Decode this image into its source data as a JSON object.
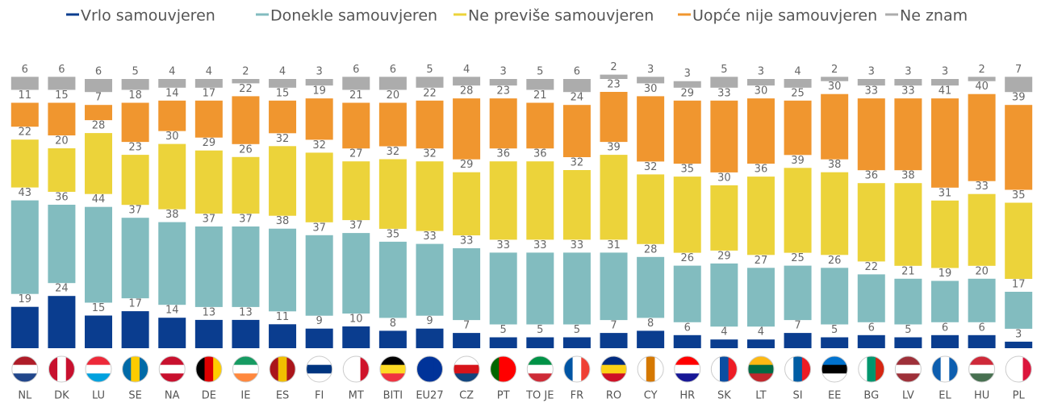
{
  "chart_data": {
    "type": "stacked_bar",
    "categories": [
      "NL",
      "DK",
      "LU",
      "SE",
      "NA",
      "DE",
      "IE",
      "ES",
      "FI",
      "MT",
      "BITI",
      "EU27",
      "CZ",
      "PT",
      "TO JE",
      "FR",
      "RO",
      "CY",
      "HR",
      "SK",
      "LT",
      "SI",
      "EE",
      "BG",
      "LV",
      "EL",
      "HU",
      "PL"
    ],
    "series": [
      {
        "name": "Vrlo samouvjeren",
        "color": "#0a3d8f",
        "values": [
          19,
          24,
          15,
          17,
          14,
          13,
          13,
          11,
          9,
          10,
          8,
          9,
          7,
          5,
          5,
          5,
          7,
          8,
          6,
          4,
          4,
          7,
          5,
          6,
          5,
          6,
          6,
          3
        ]
      },
      {
        "name": "Donekle samouvjeren",
        "color": "#82bcbf",
        "values": [
          43,
          36,
          44,
          37,
          38,
          37,
          37,
          38,
          37,
          37,
          35,
          33,
          33,
          33,
          33,
          33,
          31,
          28,
          26,
          29,
          27,
          25,
          26,
          22,
          21,
          19,
          20,
          17
        ]
      },
      {
        "name": "Ne previše samouvjeren",
        "color": "#ecd33a",
        "values": [
          22,
          20,
          28,
          23,
          30,
          29,
          26,
          32,
          32,
          27,
          32,
          32,
          29,
          36,
          36,
          32,
          39,
          32,
          35,
          30,
          36,
          39,
          38,
          36,
          38,
          31,
          33,
          35
        ]
      },
      {
        "name": "Uopće nije samouvjeren",
        "color": "#f0962f",
        "values": [
          11,
          15,
          7,
          18,
          14,
          17,
          22,
          15,
          19,
          21,
          20,
          22,
          28,
          23,
          21,
          24,
          23,
          30,
          29,
          33,
          30,
          25,
          30,
          33,
          33,
          41,
          40,
          39
        ]
      },
      {
        "name": "Ne znam",
        "color": "#acacac",
        "values": [
          6,
          6,
          6,
          5,
          4,
          4,
          2,
          4,
          3,
          6,
          6,
          5,
          4,
          3,
          5,
          6,
          2,
          3,
          3,
          5,
          3,
          4,
          2,
          3,
          3,
          3,
          2,
          7
        ]
      }
    ]
  }
}
